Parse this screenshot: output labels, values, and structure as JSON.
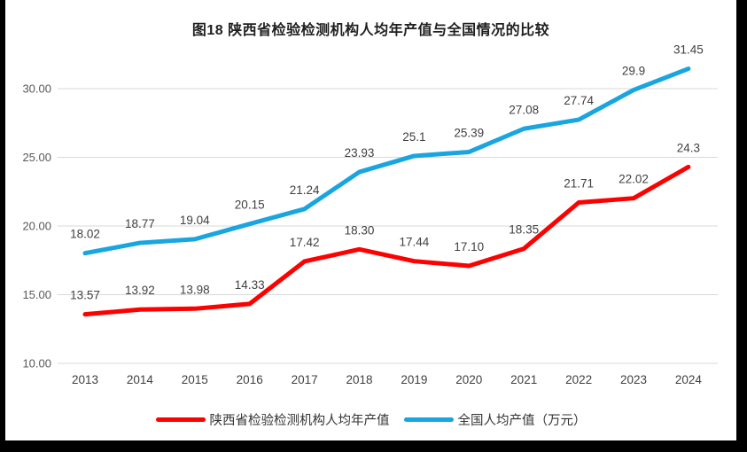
{
  "chart_data": {
    "type": "line",
    "title": "图18 陕西省检验检测机构人均年产值与全国情况的比较",
    "categories": [
      "2013",
      "2014",
      "2015",
      "2016",
      "2017",
      "2018",
      "2019",
      "2020",
      "2021",
      "2022",
      "2023",
      "2024"
    ],
    "series": [
      {
        "name": "陕西省检验检测机构人均年产值",
        "color": "#fe0000",
        "values": [
          13.57,
          13.92,
          13.98,
          14.33,
          17.42,
          18.3,
          17.44,
          17.1,
          18.35,
          21.71,
          22.02,
          24.3
        ],
        "point_labels": [
          "13.57",
          "13.92",
          "13.98",
          "14.33",
          "17.42",
          "18.30",
          "17.44",
          "17.10",
          "18.35",
          "21.71",
          "22.02",
          "24.3"
        ]
      },
      {
        "name": "全国人均产值（万元）",
        "color": "#19a5e0",
        "values": [
          18.02,
          18.77,
          19.04,
          20.15,
          21.24,
          23.93,
          25.1,
          25.39,
          27.08,
          27.74,
          29.9,
          31.45
        ],
        "point_labels": [
          "18.02",
          "18.77",
          "19.04",
          "20.15",
          "21.24",
          "23.93",
          "25.1",
          "25.39",
          "27.08",
          "27.74",
          "29.9",
          "31.45"
        ]
      }
    ],
    "y_ticks": [
      {
        "value": 10,
        "label": "10.00"
      },
      {
        "value": 15,
        "label": "15.00"
      },
      {
        "value": 20,
        "label": "20.00"
      },
      {
        "value": 25,
        "label": "25.00"
      },
      {
        "value": 30,
        "label": "30.00"
      }
    ],
    "ylim": [
      10,
      32.5
    ],
    "grid": true,
    "legend_position": "bottom",
    "xlabel": "",
    "ylabel": ""
  }
}
